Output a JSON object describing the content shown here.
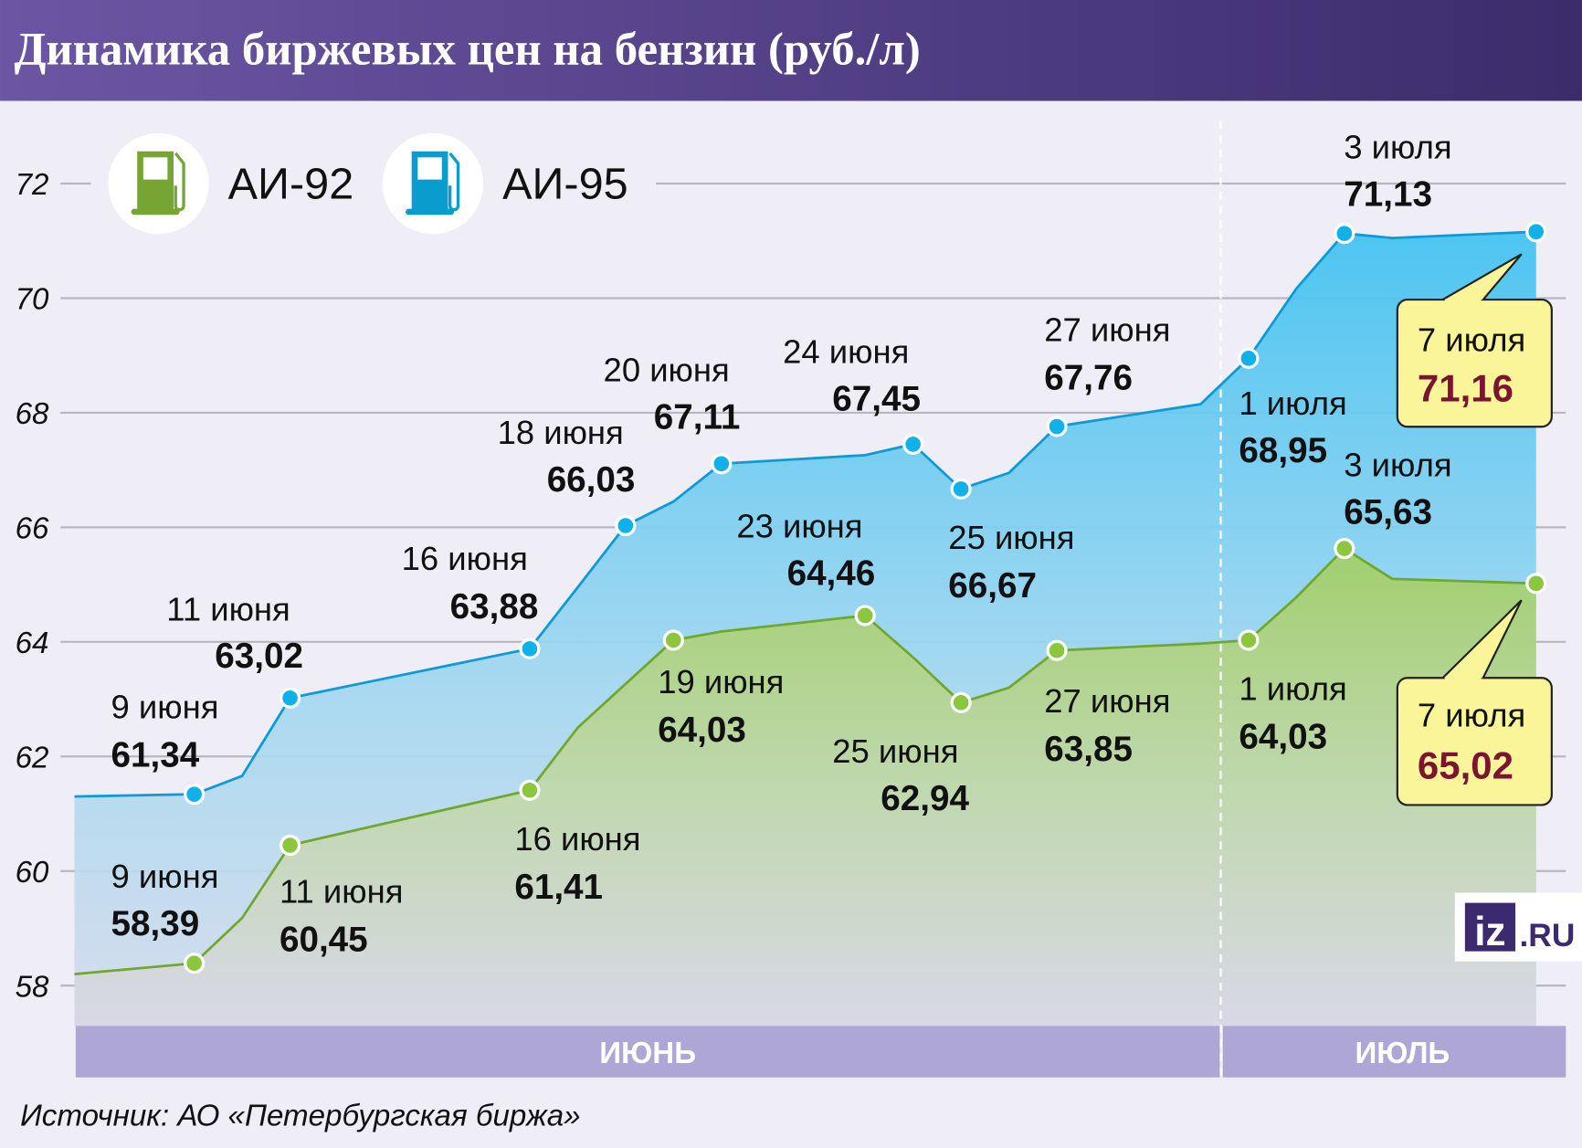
{
  "title": "Динамика биржевых цен на бензин (руб./л)",
  "source": "Источник: АО «Петербургская биржа»",
  "logo": {
    "box": "iz",
    "rest": ".RU"
  },
  "colors": {
    "ai92": "#8cc63f",
    "ai95": "#1fb0e6",
    "header": "#5a4793",
    "callout": "#fbf59a",
    "highlight": "#7a1430",
    "month_band": "#b0a8d4"
  },
  "chart_data": {
    "type": "area",
    "title": "Динамика биржевых цен на бензин (руб./л)",
    "ylabel": "руб./л",
    "ylim": [
      58,
      72
    ],
    "yticks": [
      "58",
      "60",
      "62",
      "64",
      "66",
      "68",
      "70",
      "72"
    ],
    "x_unit": "day (June 1 = 1, July 1 = 31)",
    "months": [
      {
        "label": "ИЮНЬ",
        "from": 6.5,
        "to": 30.8
      },
      {
        "label": "ИЮЛЬ",
        "from": 30.8,
        "to": 37.7
      }
    ],
    "legend": [
      "АИ-92",
      "АИ-95"
    ],
    "legend_placement": "top-left",
    "series": [
      {
        "name": "АИ-95",
        "color": "#1fb0e6",
        "points": [
          {
            "x": 6.5,
            "y": 61.3
          },
          {
            "x": 9,
            "y": 61.34,
            "date": "9 июня",
            "value": "61,34"
          },
          {
            "x": 10,
            "y": 61.66
          },
          {
            "x": 11,
            "y": 63.02,
            "date": "11 июня",
            "value": "63,02"
          },
          {
            "x": 16,
            "y": 63.88,
            "date": "16 июня",
            "value": "63,88"
          },
          {
            "x": 17,
            "y": 64.95
          },
          {
            "x": 18,
            "y": 66.03,
            "date": "18 июня",
            "value": "66,03"
          },
          {
            "x": 19,
            "y": 66.45
          },
          {
            "x": 20,
            "y": 67.11,
            "date": "20 июня",
            "value": "67,11"
          },
          {
            "x": 23,
            "y": 67.26
          },
          {
            "x": 24,
            "y": 67.45,
            "date": "24 июня",
            "value": "67,45"
          },
          {
            "x": 25,
            "y": 66.67,
            "date": "25 июня",
            "value": "66,67"
          },
          {
            "x": 26,
            "y": 66.95
          },
          {
            "x": 27,
            "y": 67.76,
            "date": "27 июня",
            "value": "67,76"
          },
          {
            "x": 30,
            "y": 68.15
          },
          {
            "x": 31,
            "y": 68.95,
            "date": "1 июля",
            "value": "68,95"
          },
          {
            "x": 32,
            "y": 70.17
          },
          {
            "x": 33,
            "y": 71.13,
            "date": "3 июля",
            "value": "71,13"
          },
          {
            "x": 34,
            "y": 71.05
          },
          {
            "x": 37,
            "y": 71.16,
            "date": "7 июля",
            "value": "71,16",
            "callout": true
          }
        ]
      },
      {
        "name": "АИ-92",
        "color": "#8cc63f",
        "points": [
          {
            "x": 6.5,
            "y": 58.2
          },
          {
            "x": 9,
            "y": 58.39,
            "date": "9 июня",
            "value": "58,39"
          },
          {
            "x": 10,
            "y": 59.18
          },
          {
            "x": 11,
            "y": 60.45,
            "date": "11 июня",
            "value": "60,45"
          },
          {
            "x": 16,
            "y": 61.41,
            "date": "16 июня",
            "value": "61,41"
          },
          {
            "x": 17,
            "y": 62.5
          },
          {
            "x": 19,
            "y": 64.03,
            "date": "19 июня",
            "value": "64,03"
          },
          {
            "x": 20,
            "y": 64.18
          },
          {
            "x": 23,
            "y": 64.46,
            "date": "23 июня",
            "value": "64,46"
          },
          {
            "x": 24,
            "y": 63.73
          },
          {
            "x": 25,
            "y": 62.94,
            "date": "25 июня",
            "value": "62,94"
          },
          {
            "x": 26,
            "y": 63.2
          },
          {
            "x": 27,
            "y": 63.85,
            "date": "27 июня",
            "value": "63,85"
          },
          {
            "x": 30,
            "y": 63.97
          },
          {
            "x": 31,
            "y": 64.03,
            "date": "1 июля",
            "value": "64,03"
          },
          {
            "x": 32,
            "y": 64.78
          },
          {
            "x": 33,
            "y": 65.63,
            "date": "3 июля",
            "value": "65,63"
          },
          {
            "x": 34,
            "y": 65.1
          },
          {
            "x": 37,
            "y": 65.02,
            "date": "7 июля",
            "value": "65,02",
            "callout": true
          }
        ]
      }
    ]
  }
}
